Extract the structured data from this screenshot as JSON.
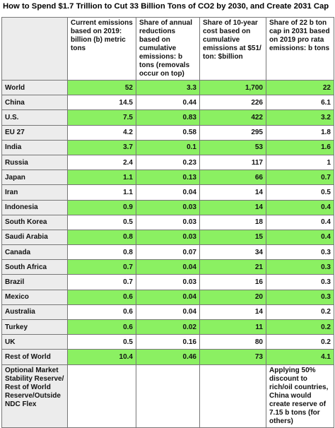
{
  "title": "How to Spend $1.7 Trillion to Cut 33 Billion Tons of CO2 by 2030, and Create 2031 Cap",
  "table": {
    "headers": [
      "Current emissions based on 2019: billion (b) metric tons",
      "Share of annual reductions based on cumulative emissions: b tons (removals occur on top)",
      "Share of 10-year cost based on cumulative emissions at $51/ ton: $billion",
      "Share of 22 b ton cap in 2031 based on 2019 pro rata emissions: b tons"
    ],
    "rows": [
      [
        "World",
        "52",
        "3.3",
        "1,700",
        "22"
      ],
      [
        "China",
        "14.5",
        "0.44",
        "226",
        "6.1"
      ],
      [
        "U.S.",
        "7.5",
        "0.83",
        "422",
        "3.2"
      ],
      [
        "EU 27",
        "4.2",
        "0.58",
        "295",
        "1.8"
      ],
      [
        "India",
        "3.7",
        "0.1",
        "53",
        "1.6"
      ],
      [
        "Russia",
        "2.4",
        "0.23",
        "117",
        "1"
      ],
      [
        "Japan",
        "1.1",
        "0.13",
        "66",
        "0.7"
      ],
      [
        "Iran",
        "1.1",
        "0.04",
        "14",
        "0.5"
      ],
      [
        "Indonesia",
        "0.9",
        "0.03",
        "14",
        "0.4"
      ],
      [
        "South Korea",
        "0.5",
        "0.03",
        "18",
        "0.4"
      ],
      [
        "Saudi Arabia",
        "0.8",
        "0.03",
        "15",
        "0.4"
      ],
      [
        "Canada",
        "0.8",
        "0.07",
        "34",
        "0.3"
      ],
      [
        "South Africa",
        "0.7",
        "0.04",
        "21",
        "0.3"
      ],
      [
        "Brazil",
        "0.7",
        "0.03",
        "16",
        "0.3"
      ],
      [
        "Mexico",
        "0.6",
        "0.04",
        "20",
        "0.3"
      ],
      [
        "Australia",
        "0.6",
        "0.04",
        "14",
        "0.2"
      ],
      [
        "Turkey",
        "0.6",
        "0.02",
        "11",
        "0.2"
      ],
      [
        "UK",
        "0.5",
        "0.16",
        "80",
        "0.2"
      ],
      [
        "Rest of World",
        "10.4",
        "0.46",
        "73",
        "4.1"
      ]
    ],
    "footer": {
      "label": "Optional Market Stability Reserve/ Rest of World Reserve/Outside NDC Flex",
      "note": "Applying 50% discount to rich/oil countries, China would create reserve of 7.15 b tons (for others)"
    }
  }
}
